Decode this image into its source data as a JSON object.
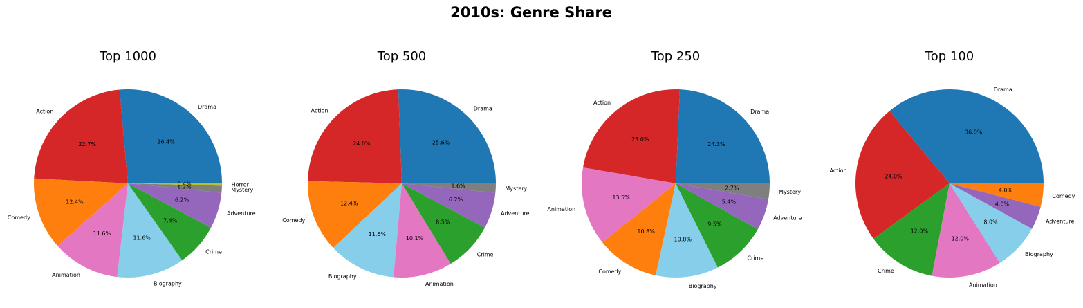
{
  "title": "2010s: Genre Share",
  "chart_data": [
    {
      "type": "pie",
      "title": "Top 1000",
      "categories": [
        "Drama",
        "Action",
        "Comedy",
        "Animation",
        "Biography",
        "Crime",
        "Adventure",
        "Mystery",
        "Horror"
      ],
      "values": [
        26.4,
        22.7,
        12.4,
        11.6,
        11.6,
        7.4,
        6.2,
        1.2,
        0.4
      ],
      "value_labels": [
        "26.4%",
        "22.7%",
        "12.4%",
        "11.6%",
        "11.6%",
        "7.4%",
        "6.2%",
        "1.2%",
        "0.4%"
      ],
      "colors": [
        "#1f77b4",
        "#d62728",
        "#ff7f0e",
        "#e377c2",
        "#87ceeb",
        "#2ca02c",
        "#9467bd",
        "#7f7f7f",
        "#bcbd22"
      ]
    },
    {
      "type": "pie",
      "title": "Top 500",
      "categories": [
        "Drama",
        "Action",
        "Comedy",
        "Biography",
        "Animation",
        "Crime",
        "Adventure",
        "Mystery"
      ],
      "values": [
        25.6,
        24.0,
        12.4,
        11.6,
        10.1,
        8.5,
        6.2,
        1.6
      ],
      "value_labels": [
        "25.6%",
        "24.0%",
        "12.4%",
        "11.6%",
        "10.1%",
        "8.5%",
        "6.2%",
        "1.6%"
      ],
      "colors": [
        "#1f77b4",
        "#d62728",
        "#ff7f0e",
        "#87ceeb",
        "#e377c2",
        "#2ca02c",
        "#9467bd",
        "#7f7f7f"
      ]
    },
    {
      "type": "pie",
      "title": "Top 250",
      "categories": [
        "Drama",
        "Action",
        "Animation",
        "Comedy",
        "Biography",
        "Crime",
        "Adventure",
        "Mystery"
      ],
      "values": [
        24.3,
        23.0,
        13.5,
        10.8,
        10.8,
        9.5,
        5.4,
        2.7
      ],
      "value_labels": [
        "24.3%",
        "23.0%",
        "13.5%",
        "10.8%",
        "10.8%",
        "9.5%",
        "5.4%",
        "2.7%"
      ],
      "colors": [
        "#1f77b4",
        "#d62728",
        "#e377c2",
        "#ff7f0e",
        "#87ceeb",
        "#2ca02c",
        "#9467bd",
        "#7f7f7f"
      ]
    },
    {
      "type": "pie",
      "title": "Top 100",
      "categories": [
        "Drama",
        "Action",
        "Crime",
        "Animation",
        "Biography",
        "Adventure",
        "Comedy"
      ],
      "values": [
        36.0,
        24.0,
        12.0,
        12.0,
        8.0,
        4.0,
        4.0
      ],
      "value_labels": [
        "36.0%",
        "24.0%",
        "12.0%",
        "12.0%",
        "8.0%",
        "4.0%",
        "4.0%"
      ],
      "colors": [
        "#1f77b4",
        "#d62728",
        "#2ca02c",
        "#e377c2",
        "#87ceeb",
        "#9467bd",
        "#ff7f0e"
      ]
    }
  ]
}
